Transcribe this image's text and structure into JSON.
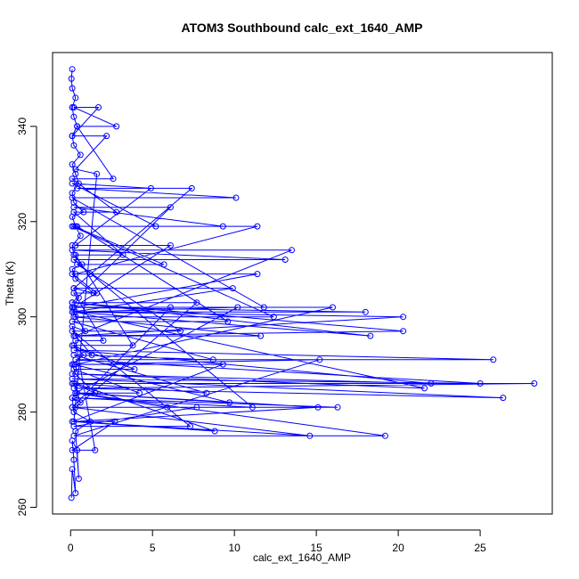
{
  "chart_data": {
    "type": "line",
    "title": "ATOM3 Southbound calc_ext_1640_AMP",
    "xlabel": "calc_ext_1640_AMP",
    "ylabel": "Theta (K)",
    "xlim": [
      -1.1,
      29.4
    ],
    "ylim": [
      258.6,
      355.5
    ],
    "xticks": [
      0,
      5,
      10,
      15,
      20,
      25
    ],
    "yticks": [
      260,
      280,
      300,
      320,
      340
    ],
    "grid": false,
    "marker": "open-circle",
    "color": "#0000ff",
    "series": [
      {
        "points": [
          [
            0.05,
            262
          ],
          [
            0.1,
            268
          ],
          [
            0.3,
            263
          ],
          [
            0.2,
            270
          ],
          [
            0.1,
            274
          ],
          [
            0.4,
            272
          ],
          [
            0.5,
            266
          ],
          [
            0.3,
            276
          ],
          [
            1.2,
            278
          ],
          [
            0.2,
            280
          ],
          [
            0.1,
            283
          ],
          [
            0.6,
            282
          ],
          [
            0.2,
            286
          ],
          [
            1.5,
            284
          ],
          [
            0.3,
            288
          ],
          [
            0.1,
            290
          ],
          [
            0.8,
            292
          ],
          [
            0.2,
            294
          ],
          [
            1.3,
            292
          ],
          [
            0.3,
            296
          ],
          [
            0.1,
            298
          ],
          [
            0.9,
            297
          ],
          [
            0.3,
            300
          ],
          [
            0.1,
            302
          ],
          [
            0.5,
            304
          ],
          [
            0.2,
            306
          ],
          [
            1.4,
            305
          ],
          [
            0.3,
            308
          ],
          [
            0.1,
            310
          ],
          [
            0.7,
            311
          ],
          [
            0.2,
            313
          ],
          [
            0.1,
            315
          ],
          [
            0.6,
            317
          ],
          [
            0.3,
            319
          ],
          [
            0.1,
            321
          ],
          [
            0.8,
            322
          ],
          [
            0.2,
            324
          ],
          [
            0.1,
            326
          ],
          [
            0.5,
            328
          ],
          [
            0.3,
            330
          ],
          [
            0.1,
            332
          ],
          [
            0.6,
            334
          ],
          [
            0.2,
            336
          ],
          [
            0.1,
            338
          ],
          [
            0.4,
            340
          ],
          [
            0.2,
            342
          ],
          [
            0.1,
            344
          ],
          [
            0.3,
            346
          ],
          [
            0.1,
            348
          ],
          [
            0.05,
            350
          ],
          [
            0.1,
            352
          ]
        ]
      },
      {
        "points": [
          [
            0.1,
            286
          ],
          [
            28.3,
            286
          ],
          [
            0.2,
            285
          ],
          [
            26.4,
            283
          ],
          [
            0.1,
            287
          ],
          [
            25,
            286
          ],
          [
            0.3,
            291
          ],
          [
            25.8,
            291
          ],
          [
            0.2,
            293
          ],
          [
            22,
            286
          ],
          [
            0.1,
            288
          ],
          [
            21.6,
            285
          ],
          [
            0.3,
            301
          ],
          [
            20.3,
            300
          ],
          [
            0.2,
            296
          ],
          [
            20.3,
            297
          ],
          [
            0.1,
            303
          ],
          [
            18.3,
            296
          ],
          [
            0.2,
            301
          ],
          [
            18,
            301
          ],
          [
            0.1,
            302
          ],
          [
            16,
            302
          ],
          [
            0.3,
            290
          ],
          [
            15.2,
            291
          ],
          [
            0.2,
            275
          ],
          [
            19.2,
            275
          ],
          [
            0.4,
            284
          ],
          [
            15.1,
            281
          ],
          [
            0.2,
            278
          ],
          [
            14.6,
            275
          ],
          [
            0.1,
            281
          ],
          [
            16.3,
            281
          ],
          [
            0.3,
            283
          ],
          [
            11.1,
            281
          ],
          [
            0.2,
            312
          ],
          [
            13.1,
            312
          ],
          [
            0.1,
            314
          ],
          [
            13.5,
            314
          ],
          [
            0.3,
            296
          ],
          [
            11.6,
            296
          ],
          [
            0.2,
            300
          ],
          [
            12.4,
            300
          ],
          [
            0.1,
            319
          ],
          [
            11.4,
            319
          ],
          [
            0.3,
            309
          ],
          [
            11.4,
            309
          ],
          [
            0.2,
            302
          ],
          [
            11.8,
            302
          ],
          [
            0.1,
            325
          ],
          [
            10.1,
            325
          ],
          [
            0.4,
            327
          ],
          [
            7.4,
            327
          ],
          [
            0.2,
            306
          ],
          [
            9.9,
            306
          ],
          [
            0.1,
            301
          ],
          [
            10.2,
            302
          ],
          [
            0.3,
            284
          ],
          [
            9.7,
            282
          ],
          [
            0.2,
            290
          ],
          [
            9.3,
            290
          ],
          [
            0.1,
            278
          ],
          [
            8.8,
            276
          ],
          [
            0.3,
            286
          ],
          [
            8.3,
            284
          ],
          [
            0.2,
            292
          ],
          [
            8.7,
            291
          ],
          [
            0.1,
            299
          ],
          [
            9.6,
            299
          ],
          [
            0.4,
            319
          ],
          [
            9.3,
            319
          ],
          [
            0.2,
            323
          ],
          [
            6.1,
            323
          ],
          [
            0.1,
            303
          ],
          [
            7.7,
            303
          ],
          [
            0.3,
            281
          ],
          [
            7.7,
            281
          ],
          [
            0.2,
            277
          ],
          [
            7.3,
            277
          ],
          [
            0.1,
            297
          ],
          [
            6.7,
            297
          ],
          [
            0.4,
            311
          ],
          [
            5.7,
            311
          ],
          [
            0.2,
            319
          ],
          [
            5.2,
            319
          ],
          [
            0.1,
            328
          ],
          [
            4.9,
            327
          ],
          [
            0.3,
            315
          ],
          [
            6.1,
            315
          ],
          [
            0.2,
            302
          ],
          [
            6.1,
            302
          ],
          [
            0.1,
            281
          ],
          [
            5.9,
            281
          ],
          [
            0.3,
            284
          ],
          [
            4.2,
            284
          ],
          [
            0.2,
            289
          ],
          [
            3.9,
            289
          ],
          [
            0.1,
            294
          ],
          [
            3.8,
            294
          ],
          [
            0.3,
            313
          ],
          [
            3.2,
            313
          ],
          [
            0.2,
            322
          ],
          [
            2.8,
            322
          ],
          [
            0.1,
            329
          ],
          [
            2.6,
            329
          ],
          [
            0.4,
            340
          ],
          [
            2.8,
            340
          ],
          [
            0.2,
            344
          ],
          [
            1.7,
            344
          ],
          [
            0.1,
            338
          ],
          [
            2.2,
            338
          ],
          [
            0.3,
            331
          ],
          [
            1.6,
            330
          ],
          [
            0.2,
            278
          ],
          [
            2.7,
            278
          ],
          [
            0.1,
            272
          ],
          [
            1.5,
            272
          ],
          [
            0.3,
            295
          ],
          [
            2.0,
            295
          ],
          [
            0.2,
            305
          ],
          [
            1.6,
            305
          ],
          [
            0.1,
            309
          ],
          [
            1.2,
            309
          ]
        ]
      }
    ]
  }
}
